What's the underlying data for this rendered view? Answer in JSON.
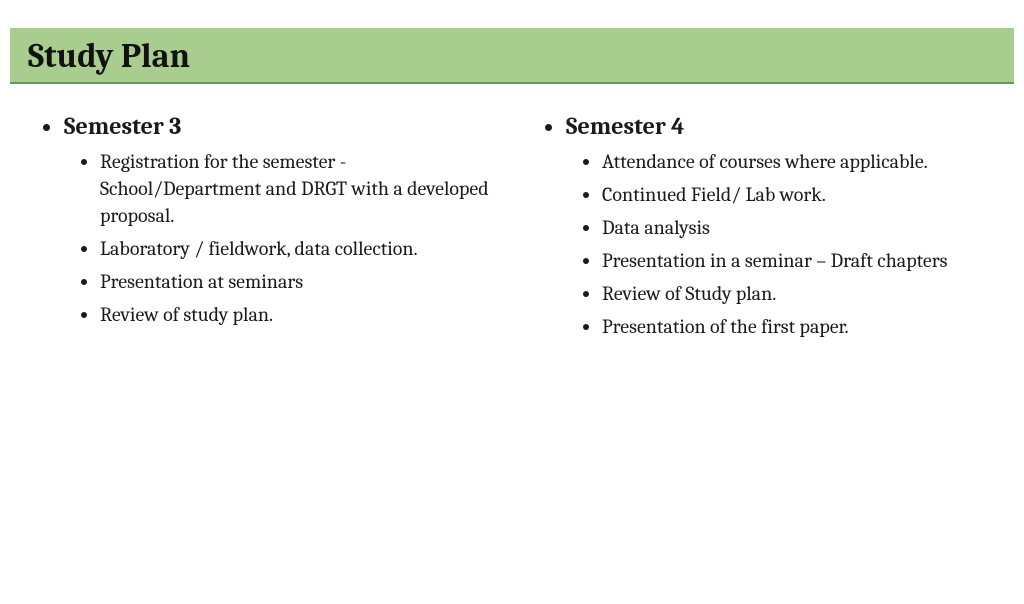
{
  "title": "Study Plan",
  "colors": {
    "title_bg": "#a8cd8e",
    "title_border": "#6b9a4e",
    "text": "#1a1a1a",
    "page_bg": "#ffffff"
  },
  "typography": {
    "title_fontsize_pt": 26,
    "heading_fontsize_pt": 18,
    "body_fontsize_pt": 15,
    "font_family": "Cambria / serif"
  },
  "layout": {
    "columns": 2,
    "aspect": "16:9"
  },
  "left": {
    "heading": "Semester 3",
    "items": [
      "Registration for the semester - School/Department and DRGT with a developed proposal.",
      "Laboratory / fieldwork, data collection.",
      "Presentation at seminars",
      "Review of study plan."
    ]
  },
  "right": {
    "heading": "Semester 4",
    "items": [
      "Attendance of courses where applicable.",
      "Continued Field/ Lab work.",
      "Data analysis",
      "Presentation in a seminar – Draft chapters",
      "Review of Study plan.",
      "Presentation of the first paper."
    ]
  }
}
